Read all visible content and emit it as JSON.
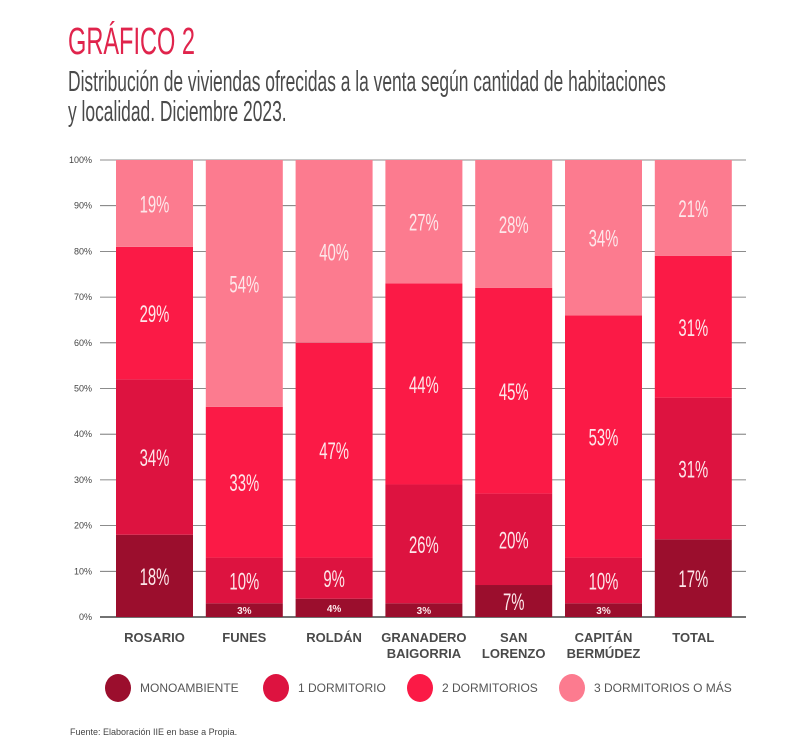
{
  "header": {
    "title": "GRÁFICO 2",
    "subtitle_line1": "Distribución de viviendas ofrecidas a la venta según cantidad de habitaciones",
    "subtitle_line2": "y localidad. Diciembre 2023."
  },
  "source": "Fuente: Elaboración IIE en base a Propia.",
  "chart_data": {
    "type": "bar",
    "stacked": true,
    "title": "Distribución de viviendas ofrecidas a la venta según cantidad de habitaciones y localidad. Diciembre 2023.",
    "xlabel": "",
    "ylabel": "",
    "ylim": [
      0,
      100
    ],
    "yticks": [
      "0%",
      "10%",
      "20%",
      "30%",
      "40%",
      "50%",
      "60%",
      "70%",
      "80%",
      "90%",
      "100%"
    ],
    "grid": true,
    "legend_position": "bottom",
    "categories": [
      [
        "ROSARIO"
      ],
      [
        "FUNES"
      ],
      [
        "ROLDÁN"
      ],
      [
        "GRANADERO",
        "BAIGORRIA"
      ],
      [
        "SAN",
        "LORENZO"
      ],
      [
        "CAPITÁN",
        "BERMÚDEZ"
      ],
      [
        "TOTAL"
      ]
    ],
    "series": [
      {
        "name": "MONOAMBIENTE",
        "color": "#9b0e2d",
        "values": [
          18,
          3,
          4,
          3,
          7,
          3,
          17
        ]
      },
      {
        "name": "1 DORMITORIO",
        "color": "#dd1340",
        "values": [
          34,
          10,
          9,
          26,
          20,
          10,
          31
        ]
      },
      {
        "name": "2 DORMITORIOS",
        "color": "#fb1a46",
        "values": [
          29,
          33,
          47,
          44,
          45,
          53,
          31
        ]
      },
      {
        "name": "3 DORMITORIOS O MÁS",
        "color": "#fc7b8f",
        "values": [
          19,
          54,
          40,
          27,
          28,
          34,
          21
        ]
      }
    ],
    "value_labels": [
      [
        "18%",
        "34%",
        "29%",
        "19%"
      ],
      [
        "3%",
        "10%",
        "33%",
        "54%"
      ],
      [
        "4%",
        "9%",
        "47%",
        "40%"
      ],
      [
        "3%",
        "26%",
        "44%",
        "27%"
      ],
      [
        "7%",
        "20%",
        "45%",
        "28%"
      ],
      [
        "3%",
        "10%",
        "53%",
        "34%"
      ],
      [
        "17%",
        "31%",
        "31%",
        "21%"
      ]
    ]
  }
}
